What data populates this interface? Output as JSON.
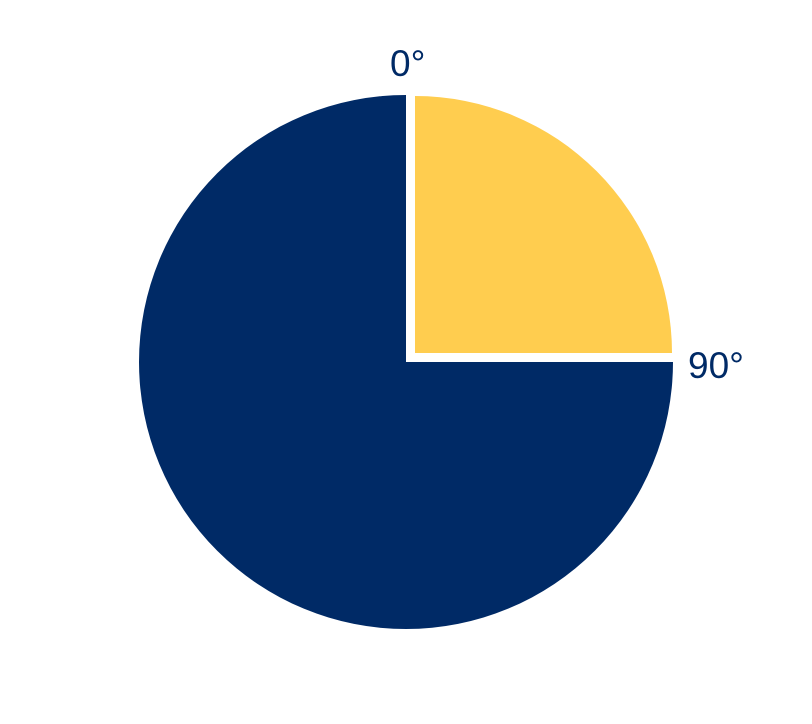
{
  "colors": {
    "background": "#ffffff",
    "major_slice": "#002a66",
    "minor_slice": "#ffcd4f",
    "label": "#002a66",
    "separator": "#ffffff"
  },
  "labels": {
    "start_angle": "0°",
    "quarter_angle": "90°"
  },
  "slices": [
    {
      "id": "quarter",
      "start_deg": 0,
      "end_deg": 90,
      "color_key": "minor_slice"
    },
    {
      "id": "remainder",
      "start_deg": 90,
      "end_deg": 360,
      "color_key": "major_slice"
    }
  ]
}
